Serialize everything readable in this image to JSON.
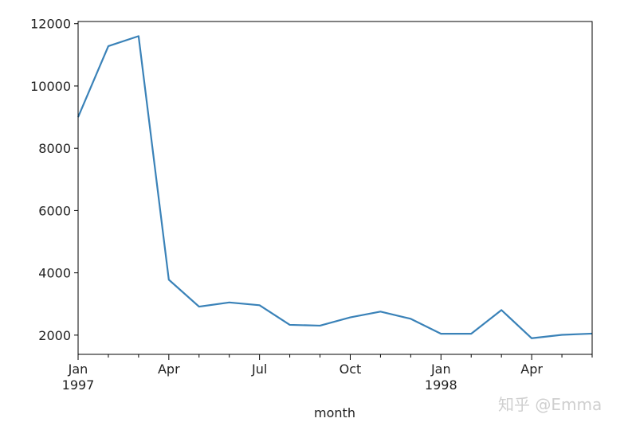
{
  "chart_data": {
    "type": "line",
    "title": "",
    "xlabel": "month",
    "ylabel": "",
    "x": [
      "1997-01",
      "1997-02",
      "1997-03",
      "1997-04",
      "1997-05",
      "1997-06",
      "1997-07",
      "1997-08",
      "1997-09",
      "1997-10",
      "1997-11",
      "1997-12",
      "1998-01",
      "1998-02",
      "1998-03",
      "1998-04",
      "1998-05",
      "1998-06"
    ],
    "values": [
      9000,
      11280,
      11600,
      3780,
      2915,
      3050,
      2960,
      2330,
      2305,
      2570,
      2755,
      2525,
      2045,
      2045,
      2805,
      1900,
      2010,
      2050
    ],
    "ylim": [
      1383,
      12070
    ],
    "yticks": [
      "2000",
      "4000",
      "6000",
      "8000",
      "10000",
      "12000"
    ],
    "xticks": [
      {
        "index": 0,
        "label": "Jan",
        "sub": "1997"
      },
      {
        "index": 3,
        "label": "Apr",
        "sub": ""
      },
      {
        "index": 6,
        "label": "Jul",
        "sub": ""
      },
      {
        "index": 9,
        "label": "Oct",
        "sub": ""
      },
      {
        "index": 12,
        "label": "Jan",
        "sub": "1998"
      },
      {
        "index": 15,
        "label": "Apr",
        "sub": ""
      }
    ],
    "grid": false,
    "line_color": "#3a82b8"
  },
  "watermark": "知乎 @Emma"
}
